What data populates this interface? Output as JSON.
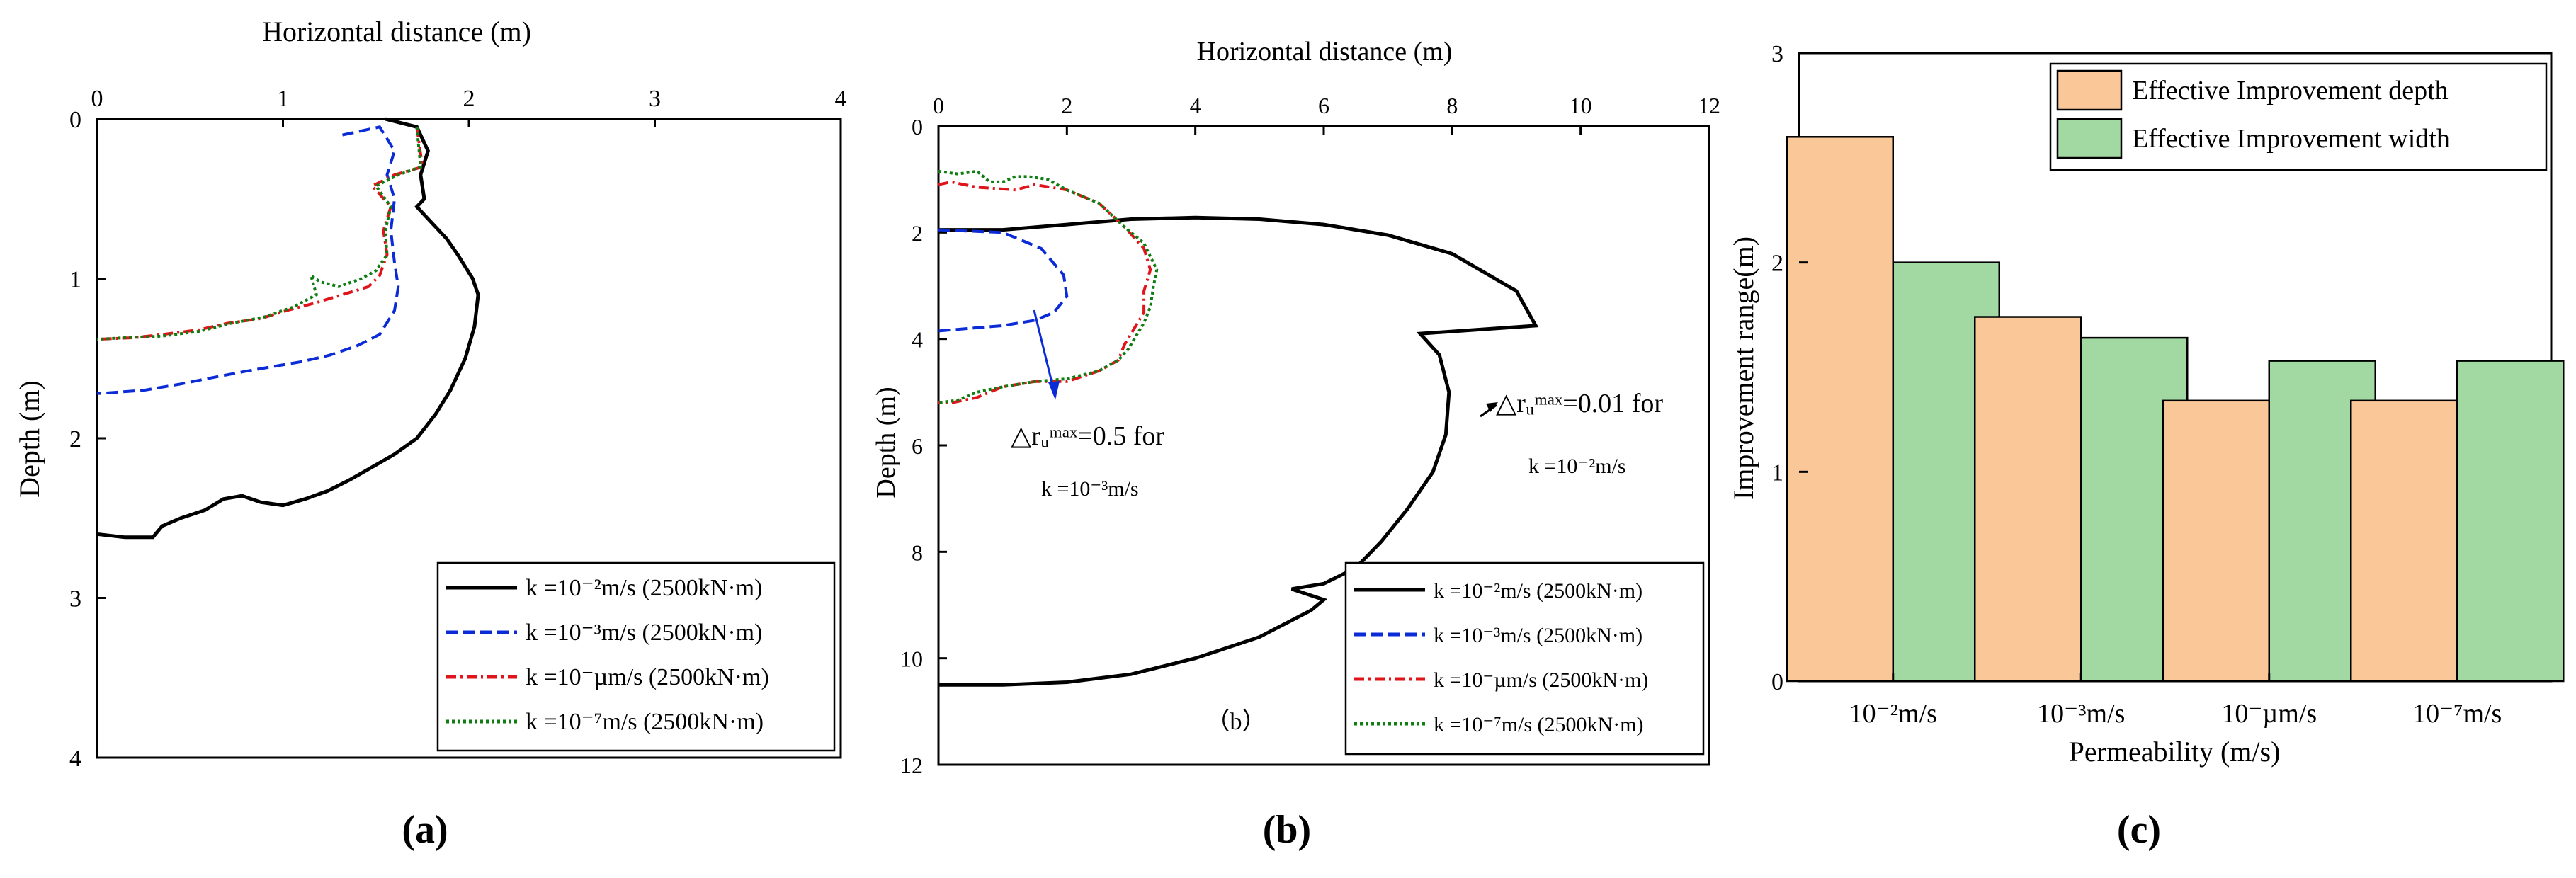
{
  "chart_data": [
    {
      "panel": "a",
      "type": "line",
      "caption": "(a)",
      "xlabel": "Horizontal distance (m)",
      "ylabel": "Depth (m)",
      "xlim": [
        0,
        4
      ],
      "ylim": [
        4,
        0
      ],
      "xticks": [
        "0",
        "1",
        "2",
        "3",
        "4"
      ],
      "yticks": [
        "0",
        "1",
        "2",
        "3",
        "4"
      ],
      "legend_position": "bottom-right",
      "series": [
        {
          "name": "k =10⁻²m/s (2500kN·m)",
          "color": "#000000",
          "style": "solid",
          "x": [
            1.55,
            1.72,
            1.78,
            1.74,
            1.76,
            1.72,
            1.8,
            1.88,
            1.94,
            2.02,
            2.05,
            2.03,
            1.98,
            1.9,
            1.82,
            1.72,
            1.6,
            1.48,
            1.36,
            1.24,
            1.12,
            1.0,
            0.88,
            0.78,
            0.68,
            0.58,
            0.45,
            0.35,
            0.3,
            0.15,
            0.0
          ],
          "y": [
            0.0,
            0.05,
            0.2,
            0.35,
            0.5,
            0.55,
            0.65,
            0.75,
            0.85,
            1.0,
            1.1,
            1.3,
            1.5,
            1.7,
            1.85,
            2.0,
            2.1,
            2.18,
            2.26,
            2.33,
            2.38,
            2.42,
            2.4,
            2.36,
            2.38,
            2.45,
            2.5,
            2.55,
            2.62,
            2.62,
            2.6
          ]
        },
        {
          "name": "k =10⁻³m/s (2500kN·m)",
          "color": "#0b2bd6",
          "style": "dashed",
          "x": [
            1.32,
            1.52,
            1.6,
            1.56,
            1.6,
            1.58,
            1.6,
            1.62,
            1.6,
            1.52,
            1.4,
            1.25,
            1.1,
            0.95,
            0.8,
            0.62,
            0.45,
            0.25,
            0.0
          ],
          "y": [
            0.1,
            0.05,
            0.2,
            0.35,
            0.5,
            0.7,
            0.9,
            1.05,
            1.2,
            1.35,
            1.42,
            1.48,
            1.52,
            1.55,
            1.58,
            1.62,
            1.66,
            1.7,
            1.72
          ]
        },
        {
          "name": "k =10⁻µm/s (2500kN·m)",
          "color": "#e0151b",
          "style": "dashdot",
          "x": [
            1.72,
            1.75,
            1.6,
            1.48,
            1.58,
            1.54,
            1.56,
            1.52,
            1.46,
            1.32,
            1.18,
            1.02,
            0.88,
            0.7,
            0.55,
            0.35,
            0.2,
            0.0
          ],
          "y": [
            0.05,
            0.3,
            0.35,
            0.42,
            0.55,
            0.7,
            0.85,
            0.98,
            1.05,
            1.1,
            1.15,
            1.2,
            1.25,
            1.28,
            1.32,
            1.35,
            1.37,
            1.38
          ]
        },
        {
          "name": "k =10⁻⁷m/s (2500kN·m)",
          "color": "#0f7d12",
          "style": "dotted",
          "x": [
            1.72,
            1.74,
            1.62,
            1.5,
            1.58,
            1.55,
            1.56,
            1.5,
            1.42,
            1.3,
            1.2,
            1.15,
            1.18,
            1.05,
            0.9,
            0.72,
            0.55,
            0.35,
            0.15,
            0.0
          ],
          "y": [
            0.05,
            0.3,
            0.35,
            0.42,
            0.55,
            0.7,
            0.85,
            0.95,
            1.0,
            1.05,
            1.02,
            0.98,
            1.1,
            1.18,
            1.24,
            1.28,
            1.33,
            1.36,
            1.37,
            1.38
          ]
        }
      ]
    },
    {
      "panel": "b",
      "type": "line",
      "caption": "(b)",
      "inner_label": "（b）",
      "xlabel": "Horizontal distance (m)",
      "ylabel": "Depth (m)",
      "xlim": [
        0,
        12
      ],
      "ylim": [
        12,
        0
      ],
      "xticks": [
        "0",
        "2",
        "4",
        "6",
        "8",
        "10",
        "12"
      ],
      "yticks": [
        "0",
        "2",
        "4",
        "6",
        "8",
        "10",
        "12"
      ],
      "legend_position": "bottom-right",
      "annotations": [
        {
          "text": "△rᵤᵐᵃˣ=0.5 for",
          "sub": "k =10⁻³m/s",
          "color": "#0b2bd6",
          "x": 1.5,
          "y": 4.3
        },
        {
          "text": "△rᵤᵐᵃˣ=0.01 for",
          "sub": "k =10⁻²m/s",
          "color": "#000000",
          "x": 9.3,
          "y": 3.7
        }
      ],
      "series": [
        {
          "name": "k =10⁻²m/s (2500kN·m)",
          "color": "#000000",
          "style": "solid",
          "x": [
            0.0,
            1.0,
            2.0,
            3.0,
            4.0,
            5.0,
            6.0,
            7.0,
            8.0,
            9.0,
            9.3,
            7.5,
            7.8,
            7.95,
            7.9,
            7.7,
            7.3,
            6.9,
            6.5,
            6.0,
            5.5,
            6.0,
            5.8,
            5.0,
            4.0,
            3.0,
            2.0,
            1.0,
            0.0
          ],
          "y": [
            1.95,
            1.95,
            1.85,
            1.75,
            1.72,
            1.75,
            1.85,
            2.05,
            2.4,
            3.1,
            3.75,
            3.9,
            4.3,
            5.0,
            5.8,
            6.5,
            7.2,
            7.8,
            8.3,
            8.6,
            8.7,
            8.9,
            9.1,
            9.6,
            10.0,
            10.3,
            10.45,
            10.5,
            10.5
          ]
        },
        {
          "name": "k =10⁻³m/s (2500kN·m)",
          "color": "#0b2bd6",
          "style": "dashed",
          "x": [
            0.0,
            1.0,
            1.6,
            1.95,
            2.0,
            1.8,
            1.5,
            1.0,
            0.5,
            0.0
          ],
          "y": [
            1.95,
            2.0,
            2.3,
            2.8,
            3.2,
            3.5,
            3.65,
            3.75,
            3.8,
            3.85
          ]
        },
        {
          "name": "k =10⁻µm/s (2500kN·m)",
          "color": "#e0151b",
          "style": "dashdot",
          "x": [
            0.0,
            0.2,
            0.6,
            1.2,
            1.5,
            2.0,
            2.5,
            2.9,
            3.2,
            3.3,
            3.2,
            3.2,
            3.0,
            2.9,
            2.8,
            2.5,
            2.0,
            1.5,
            1.0,
            0.6,
            0.2,
            0.0
          ],
          "y": [
            1.1,
            1.05,
            1.15,
            1.2,
            1.1,
            1.2,
            1.45,
            1.9,
            2.3,
            2.7,
            3.1,
            3.5,
            3.9,
            4.1,
            4.4,
            4.6,
            4.8,
            4.8,
            4.9,
            5.1,
            5.2,
            5.2
          ]
        },
        {
          "name": "k =10⁻⁷m/s (2500kN·m)",
          "color": "#0f7d12",
          "style": "dotted",
          "x": [
            0.0,
            0.3,
            0.6,
            0.8,
            1.0,
            1.2,
            1.4,
            1.7,
            2.0,
            2.5,
            2.9,
            3.2,
            3.4,
            3.35,
            3.3,
            3.2,
            3.05,
            2.95,
            2.8,
            2.5,
            2.0,
            1.5,
            1.0,
            0.6,
            0.3,
            0.0
          ],
          "y": [
            0.85,
            0.9,
            0.85,
            1.05,
            1.05,
            0.95,
            0.95,
            1.0,
            1.2,
            1.45,
            1.9,
            2.2,
            2.7,
            3.0,
            3.4,
            3.7,
            4.0,
            4.2,
            4.4,
            4.6,
            4.75,
            4.8,
            4.9,
            5.0,
            5.15,
            5.2
          ]
        }
      ]
    },
    {
      "panel": "c",
      "type": "bar",
      "caption": "(c)",
      "xlabel": "Permeability (m/s)",
      "ylabel": "Improvement range(m)",
      "ylim": [
        0,
        3
      ],
      "yticks": [
        "0",
        "1",
        "2",
        "3"
      ],
      "categories": [
        "10⁻²m/s",
        "10⁻³m/s",
        "10⁻µm/s",
        "10⁻⁷m/s"
      ],
      "legend_position": "top-right",
      "series": [
        {
          "name": "Effective Improvement depth",
          "color": "#fac898",
          "values": [
            2.6,
            1.74,
            1.34,
            1.34
          ]
        },
        {
          "name": "Effective Improvement width",
          "color": "#a2d9a2",
          "values": [
            2.0,
            1.64,
            1.53,
            1.53
          ]
        }
      ]
    }
  ]
}
